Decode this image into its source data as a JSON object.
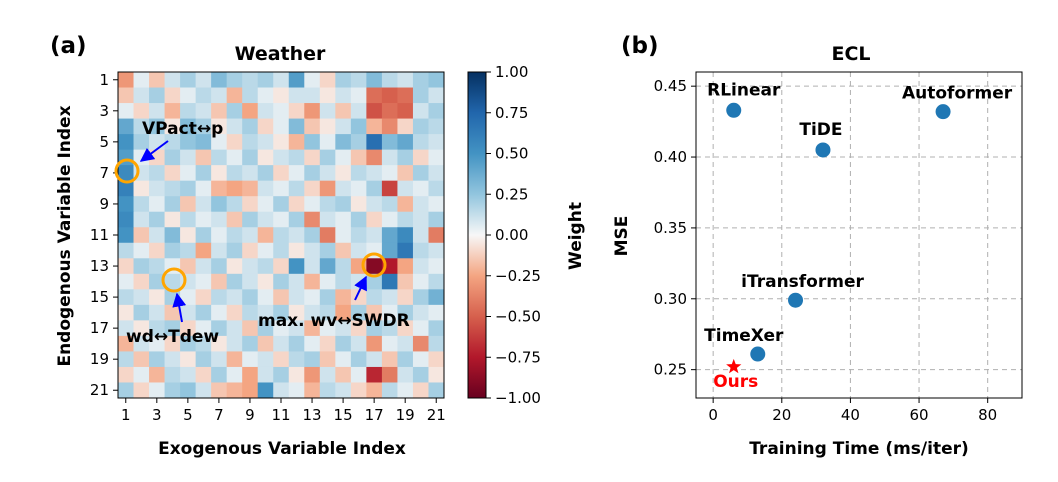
{
  "panels": {
    "a": {
      "label": "(a)"
    },
    "b": {
      "label": "(b)"
    }
  },
  "chart_data": [
    {
      "type": "heatmap",
      "title": "Weather",
      "xlabel": "Exogenous Variable Index",
      "ylabel": "Endogenous Variable Index",
      "colorbar_label": "Weight",
      "vmin": -1.0,
      "vmax": 1.0,
      "colorbar_ticks": [
        1.0,
        0.75,
        0.5,
        0.25,
        0.0,
        -0.25,
        -0.5,
        -0.75,
        -1.0
      ],
      "colorbar_tick_labels": [
        "1.00",
        "0.75",
        "0.50",
        "0.25",
        "0.00",
        "−0.25",
        "−0.50",
        "−0.75",
        "−1.00"
      ],
      "x_ticks": [
        1,
        3,
        5,
        7,
        9,
        11,
        13,
        15,
        17,
        19,
        21
      ],
      "x_tick_labels": [
        "1",
        "3",
        "5",
        "7",
        "9",
        "11",
        "13",
        "15",
        "17",
        "19",
        "21"
      ],
      "y_ticks": [
        1,
        3,
        5,
        7,
        9,
        11,
        13,
        15,
        17,
        19,
        21
      ],
      "y_tick_labels": [
        "1",
        "3",
        "5",
        "7",
        "9",
        "11",
        "13",
        "15",
        "17",
        "19",
        "21"
      ],
      "rows": 21,
      "cols": 21,
      "values": [
        [
          -0.3,
          0.05,
          -0.15,
          0.1,
          0.2,
          0.1,
          0.3,
          0.2,
          0.15,
          0.2,
          0.1,
          0.45,
          0.05,
          -0.1,
          0.2,
          0.15,
          0.3,
          0.15,
          0.1,
          0.2,
          0.25
        ],
        [
          -0.15,
          0.1,
          0.2,
          -0.1,
          0.05,
          0.15,
          0.1,
          -0.2,
          0.15,
          0.05,
          -0.05,
          0.1,
          0.1,
          -0.05,
          0.1,
          0.05,
          -0.45,
          -0.5,
          -0.45,
          0.2,
          0.1
        ],
        [
          0.05,
          -0.1,
          0.1,
          -0.2,
          0.15,
          0.1,
          -0.15,
          0.2,
          -0.25,
          0.1,
          0.05,
          -0.1,
          -0.3,
          0.1,
          -0.15,
          0.1,
          -0.55,
          -0.45,
          -0.5,
          0.1,
          0.2
        ],
        [
          0.4,
          0.15,
          0.25,
          -0.05,
          0.3,
          0.2,
          -0.05,
          0.1,
          0.2,
          -0.1,
          0.05,
          0.3,
          -0.15,
          -0.05,
          0.1,
          0.25,
          -0.2,
          -0.35,
          -0.1,
          0.2,
          0.15
        ],
        [
          0.5,
          0.2,
          0.1,
          0.15,
          0.25,
          0.3,
          0.05,
          -0.1,
          0.15,
          0.1,
          -0.05,
          -0.2,
          0.25,
          0.05,
          0.3,
          0.2,
          0.7,
          0.3,
          0.4,
          0.15,
          0.1
        ],
        [
          0.45,
          0.05,
          -0.1,
          0.2,
          0.1,
          -0.15,
          0.15,
          0.05,
          0.2,
          -0.05,
          0.1,
          0.15,
          -0.1,
          0.2,
          0.05,
          -0.15,
          -0.35,
          0.1,
          0.2,
          -0.1,
          0.05
        ],
        [
          0.55,
          0.1,
          0.15,
          -0.1,
          0.05,
          0.2,
          -0.05,
          0.15,
          0.1,
          0.2,
          -0.1,
          0.05,
          0.2,
          0.1,
          -0.05,
          0.15,
          0.1,
          0.05,
          -0.15,
          0.2,
          0.1
        ],
        [
          0.6,
          -0.05,
          0.1,
          0.15,
          0.2,
          0.05,
          -0.2,
          -0.25,
          -0.2,
          0.1,
          0.05,
          0.15,
          -0.1,
          -0.3,
          0.1,
          0.05,
          0.2,
          -0.6,
          0.1,
          0.05,
          0.15
        ],
        [
          0.5,
          0.15,
          0.05,
          0.2,
          -0.15,
          0.1,
          0.25,
          0.15,
          -0.1,
          0.05,
          0.2,
          -0.1,
          0.05,
          0.15,
          0.2,
          -0.05,
          0.1,
          0.15,
          -0.2,
          0.1,
          0.05
        ],
        [
          0.55,
          0.1,
          0.2,
          -0.05,
          0.15,
          0.05,
          0.1,
          -0.15,
          0.2,
          0.1,
          0.05,
          0.2,
          -0.35,
          0.1,
          0.05,
          0.2,
          -0.1,
          0.05,
          0.15,
          0.1,
          0.2
        ],
        [
          0.5,
          -0.15,
          0.1,
          0.3,
          -0.05,
          0.2,
          0.05,
          0.15,
          0.1,
          -0.2,
          0.15,
          0.1,
          0.2,
          -0.4,
          0.05,
          0.15,
          0.1,
          0.4,
          0.55,
          0.1,
          -0.4
        ],
        [
          0.15,
          0.05,
          -0.1,
          0.2,
          0.15,
          -0.25,
          0.1,
          0.2,
          -0.1,
          0.05,
          0.15,
          -0.05,
          0.1,
          0.2,
          -0.15,
          0.1,
          0.05,
          0.4,
          0.65,
          0.15,
          0.1
        ],
        [
          -0.1,
          0.2,
          0.15,
          0.05,
          -0.15,
          0.1,
          0.2,
          -0.05,
          0.1,
          0.15,
          -0.1,
          0.5,
          0.1,
          0.4,
          0.15,
          -0.25,
          -0.9,
          -0.75,
          -0.25,
          0.1,
          0.05
        ],
        [
          0.05,
          -0.1,
          0.2,
          0.15,
          0.1,
          0.05,
          -0.15,
          0.2,
          0.1,
          -0.05,
          0.2,
          0.1,
          -0.2,
          0.05,
          0.15,
          0.1,
          0.2,
          0.65,
          -0.15,
          0.05,
          0.15
        ],
        [
          0.15,
          0.1,
          -0.05,
          0.2,
          0.05,
          -0.1,
          0.15,
          0.1,
          0.2,
          0.05,
          -0.15,
          0.1,
          0.05,
          0.2,
          -0.2,
          -0.1,
          0.15,
          0.1,
          -0.1,
          0.2,
          0.35
        ],
        [
          -0.05,
          0.2,
          0.1,
          -0.15,
          0.1,
          0.2,
          0.05,
          -0.1,
          0.15,
          0.1,
          0.2,
          -0.05,
          0.1,
          0.15,
          -0.25,
          0.2,
          -0.15,
          0.05,
          0.2,
          0.1,
          0.05
        ],
        [
          0.1,
          -0.05,
          0.15,
          0.2,
          -0.1,
          0.05,
          0.2,
          0.1,
          -0.15,
          0.2,
          0.05,
          0.1,
          -0.2,
          0.05,
          0.1,
          -0.1,
          0.2,
          0.15,
          -0.1,
          0.05,
          0.2
        ],
        [
          -0.2,
          0.1,
          0.05,
          -0.1,
          0.2,
          0.15,
          -0.05,
          0.1,
          0.2,
          -0.15,
          0.1,
          0.2,
          0.05,
          -0.1,
          0.2,
          0.1,
          -0.3,
          0.05,
          0.1,
          -0.35,
          0.15
        ],
        [
          0.15,
          -0.15,
          0.2,
          0.1,
          -0.05,
          0.2,
          0.1,
          -0.2,
          0.05,
          0.1,
          -0.1,
          0.15,
          0.2,
          -0.15,
          0.05,
          0.2,
          0.1,
          -0.15,
          0.2,
          0.05,
          -0.1
        ],
        [
          -0.1,
          0.05,
          -0.2,
          0.15,
          0.1,
          -0.1,
          0.2,
          0.05,
          -0.25,
          0.1,
          0.2,
          -0.05,
          -0.3,
          0.1,
          -0.15,
          0.05,
          -0.7,
          -0.4,
          0.1,
          0.2,
          -0.05
        ],
        [
          0.2,
          -0.1,
          0.05,
          0.2,
          0.25,
          0.1,
          -0.15,
          -0.2,
          -0.25,
          0.5,
          0.1,
          0.05,
          -0.2,
          0.15,
          0.1,
          -0.1,
          -0.2,
          0.15,
          0.05,
          -0.1,
          0.2
        ]
      ],
      "annotations": [
        {
          "text": "VPact↔p",
          "target_col": 1,
          "target_row": 7
        },
        {
          "text": "wd↔Tdew",
          "target_col": 4,
          "target_row": 14
        },
        {
          "text": "max. wv↔SWDR",
          "target_col": 17,
          "target_row": 13
        }
      ]
    },
    {
      "type": "scatter",
      "title": "ECL",
      "xlabel": "Training Time (ms/iter)",
      "ylabel": "MSE",
      "xlim": [
        -5,
        90
      ],
      "ylim": [
        0.23,
        0.46
      ],
      "x_ticks": [
        0,
        20,
        40,
        60,
        80
      ],
      "x_tick_labels": [
        "0",
        "20",
        "40",
        "60",
        "80"
      ],
      "y_ticks": [
        0.25,
        0.3,
        0.35,
        0.4,
        0.45
      ],
      "y_tick_labels": [
        "0.25",
        "0.30",
        "0.35",
        "0.40",
        "0.45"
      ],
      "grid": true,
      "points": [
        {
          "label": "RLinear",
          "x": 6,
          "y": 0.433,
          "marker": "circle",
          "color": "#1f77b4"
        },
        {
          "label": "Autoformer",
          "x": 67,
          "y": 0.432,
          "marker": "circle",
          "color": "#1f77b4"
        },
        {
          "label": "TiDE",
          "x": 32,
          "y": 0.405,
          "marker": "circle",
          "color": "#1f77b4"
        },
        {
          "label": "iTransformer",
          "x": 24,
          "y": 0.299,
          "marker": "circle",
          "color": "#1f77b4"
        },
        {
          "label": "TimeXer",
          "x": 13,
          "y": 0.261,
          "marker": "circle",
          "color": "#1f77b4"
        },
        {
          "label": "Ours",
          "x": 6,
          "y": 0.252,
          "marker": "star",
          "color": "#ff0000"
        }
      ]
    }
  ]
}
